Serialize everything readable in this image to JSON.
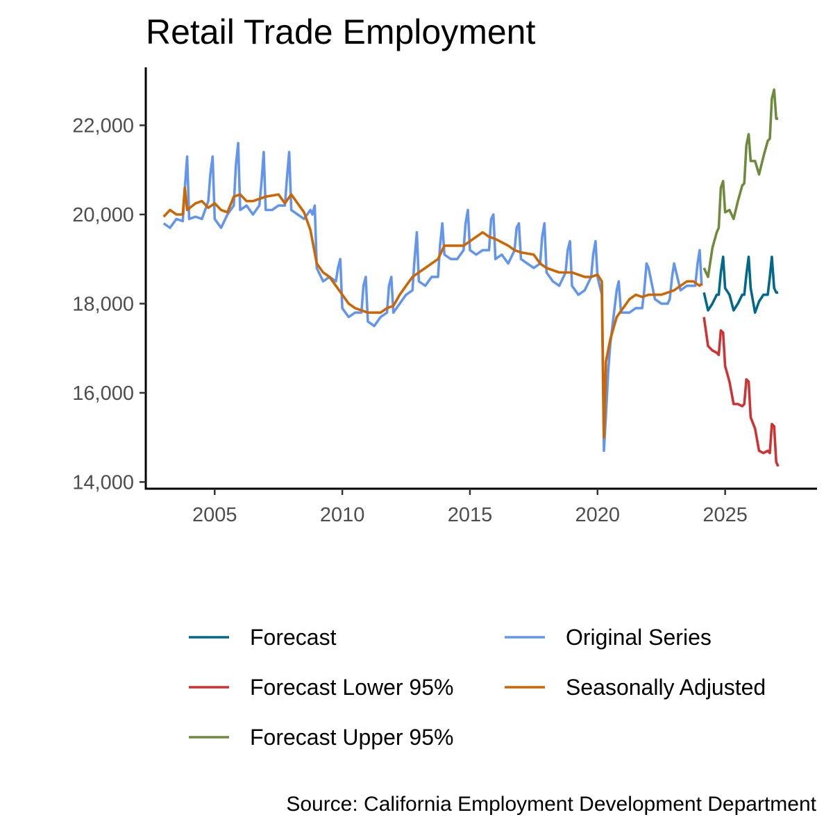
{
  "chart_data": {
    "type": "line",
    "title": "Retail Trade Employment",
    "xlabel": "",
    "ylabel": "",
    "caption": "Source: California Employment Development Department",
    "xlim": [
      2002.3,
      2028.6
    ],
    "ylim": [
      13850,
      23300
    ],
    "x_ticks": [
      2005,
      2010,
      2015,
      2020,
      2025
    ],
    "y_ticks": [
      14000,
      16000,
      18000,
      20000,
      22000
    ],
    "grid": false,
    "legend_position": "bottom",
    "legend_order": [
      "Forecast",
      "Forecast Lower 95%",
      "Forecast Upper 95%",
      "Original Series",
      "Seasonally Adjusted"
    ],
    "series": [
      {
        "name": "Original Series",
        "color": "#6495ed",
        "x": [
          2003.0,
          2003.25,
          2003.5,
          2003.75,
          2003.83,
          2003.92,
          2004.0,
          2004.25,
          2004.5,
          2004.75,
          2004.83,
          2004.92,
          2005.0,
          2005.25,
          2005.5,
          2005.75,
          2005.83,
          2005.92,
          2006.0,
          2006.25,
          2006.5,
          2006.75,
          2006.83,
          2006.92,
          2007.0,
          2007.25,
          2007.5,
          2007.75,
          2007.83,
          2007.92,
          2008.0,
          2008.25,
          2008.5,
          2008.75,
          2008.83,
          2008.92,
          2009.0,
          2009.25,
          2009.5,
          2009.75,
          2009.83,
          2009.92,
          2010.0,
          2010.25,
          2010.5,
          2010.75,
          2010.83,
          2010.92,
          2011.0,
          2011.25,
          2011.5,
          2011.75,
          2011.83,
          2011.92,
          2012.0,
          2012.25,
          2012.5,
          2012.75,
          2012.83,
          2012.92,
          2013.0,
          2013.25,
          2013.5,
          2013.75,
          2013.83,
          2013.92,
          2014.0,
          2014.25,
          2014.5,
          2014.75,
          2014.83,
          2014.92,
          2015.0,
          2015.25,
          2015.5,
          2015.75,
          2015.83,
          2015.92,
          2016.0,
          2016.25,
          2016.5,
          2016.75,
          2016.83,
          2016.92,
          2017.0,
          2017.25,
          2017.5,
          2017.75,
          2017.83,
          2017.92,
          2018.0,
          2018.25,
          2018.5,
          2018.75,
          2018.83,
          2018.92,
          2019.0,
          2019.25,
          2019.5,
          2019.75,
          2019.83,
          2019.92,
          2020.0,
          2020.17,
          2020.25,
          2020.33,
          2020.42,
          2020.5,
          2020.75,
          2020.83,
          2020.92,
          2021.0,
          2021.25,
          2021.5,
          2021.75,
          2021.83,
          2021.92,
          2022.0,
          2022.25,
          2022.5,
          2022.75,
          2022.83,
          2022.92,
          2023.0,
          2023.25,
          2023.5,
          2023.75,
          2023.83,
          2023.92,
          2024.0,
          2024.08
        ],
        "y": [
          19800,
          19700,
          19900,
          19850,
          20600,
          21300,
          19900,
          19950,
          19900,
          20300,
          20900,
          21300,
          19900,
          19700,
          20000,
          20200,
          21100,
          21600,
          20100,
          20200,
          20000,
          20200,
          20700,
          21400,
          20100,
          20100,
          20200,
          20200,
          20800,
          21400,
          20100,
          20000,
          19900,
          20100,
          20000,
          20200,
          18800,
          18500,
          18600,
          18500,
          18800,
          19000,
          17900,
          17700,
          17800,
          17800,
          18400,
          18600,
          17600,
          17500,
          17700,
          17800,
          18400,
          18600,
          17800,
          18000,
          18200,
          18300,
          19000,
          19600,
          18500,
          18400,
          18600,
          18600,
          19300,
          19800,
          19100,
          19000,
          19000,
          19200,
          19800,
          20100,
          19200,
          19100,
          19200,
          19200,
          19900,
          20000,
          19000,
          19100,
          18900,
          19200,
          19700,
          19800,
          19000,
          18900,
          18800,
          18900,
          19500,
          19800,
          18700,
          18500,
          18400,
          18700,
          19200,
          19400,
          18400,
          18200,
          18300,
          18600,
          19100,
          19400,
          18600,
          18200,
          14700,
          15500,
          16500,
          17100,
          18300,
          18500,
          17800,
          17800,
          17800,
          17900,
          17900,
          18300,
          18900,
          18800,
          18100,
          18000,
          18000,
          18100,
          18600,
          18900,
          18300,
          18400,
          18400,
          18400,
          18900,
          19200,
          18400
        ]
      },
      {
        "name": "Seasonally Adjusted",
        "color": "#cc6600",
        "x": [
          2003.0,
          2003.25,
          2003.5,
          2003.75,
          2003.83,
          2003.92,
          2004.25,
          2004.5,
          2004.75,
          2005.0,
          2005.25,
          2005.5,
          2005.75,
          2006.0,
          2006.25,
          2006.5,
          2006.75,
          2007.0,
          2007.5,
          2007.75,
          2008.0,
          2008.25,
          2008.5,
          2008.75,
          2009.0,
          2009.25,
          2009.5,
          2009.75,
          2010.0,
          2010.25,
          2010.5,
          2010.75,
          2011.0,
          2011.5,
          2011.75,
          2012.0,
          2012.25,
          2012.5,
          2012.75,
          2013.0,
          2013.5,
          2013.75,
          2014.0,
          2014.5,
          2014.75,
          2015.0,
          2015.25,
          2015.5,
          2015.75,
          2016.0,
          2016.5,
          2016.75,
          2017.0,
          2017.5,
          2017.75,
          2018.0,
          2018.5,
          2018.75,
          2019.0,
          2019.5,
          2019.75,
          2020.0,
          2020.17,
          2020.25,
          2020.33,
          2020.5,
          2020.75,
          2021.0,
          2021.25,
          2021.5,
          2021.75,
          2022.0,
          2022.5,
          2022.75,
          2023.0,
          2023.5,
          2023.75,
          2024.0,
          2024.08
        ],
        "y": [
          19950,
          20100,
          20000,
          20000,
          20600,
          20100,
          20250,
          20300,
          20150,
          20250,
          20100,
          20050,
          20400,
          20450,
          20300,
          20300,
          20350,
          20400,
          20450,
          20250,
          20450,
          20250,
          20050,
          19650,
          18900,
          18700,
          18600,
          18400,
          18200,
          18000,
          17900,
          17850,
          17800,
          17800,
          17900,
          17950,
          18200,
          18400,
          18600,
          18700,
          18900,
          19000,
          19300,
          19300,
          19300,
          19400,
          19500,
          19600,
          19500,
          19450,
          19300,
          19200,
          19150,
          19100,
          18900,
          18800,
          18700,
          18700,
          18700,
          18600,
          18600,
          18650,
          18500,
          15000,
          16700,
          17200,
          17700,
          17900,
          18100,
          18200,
          18150,
          18200,
          18200,
          18250,
          18300,
          18500,
          18500,
          18400,
          18450
        ]
      },
      {
        "name": "Forecast",
        "color": "#00688b",
        "x": [
          2024.17,
          2024.33,
          2024.5,
          2024.67,
          2024.75,
          2024.83,
          2024.92,
          2025.0,
          2025.17,
          2025.33,
          2025.5,
          2025.67,
          2025.75,
          2025.83,
          2025.92,
          2026.0,
          2026.17,
          2026.33,
          2026.5,
          2026.67,
          2026.75,
          2026.83,
          2026.92,
          2027.0,
          2027.08
        ],
        "y": [
          18250,
          17850,
          18000,
          18200,
          18200,
          18700,
          19050,
          18350,
          18200,
          17850,
          18000,
          18200,
          18200,
          18650,
          19050,
          18350,
          17800,
          18050,
          18200,
          18200,
          18600,
          19050,
          18350,
          18250,
          18250
        ]
      },
      {
        "name": "Forecast Lower 95%",
        "color": "#cd3333",
        "x": [
          2024.17,
          2024.33,
          2024.5,
          2024.67,
          2024.75,
          2024.83,
          2024.92,
          2025.0,
          2025.17,
          2025.33,
          2025.5,
          2025.67,
          2025.75,
          2025.83,
          2025.92,
          2026.0,
          2026.17,
          2026.33,
          2026.5,
          2026.67,
          2026.75,
          2026.83,
          2026.92,
          2027.0,
          2027.08
        ],
        "y": [
          17700,
          17050,
          16950,
          16900,
          16850,
          17400,
          17350,
          16600,
          16250,
          15750,
          15750,
          15700,
          15750,
          16300,
          16250,
          15450,
          15200,
          14700,
          14650,
          14700,
          14650,
          15300,
          15250,
          14450,
          14350
        ]
      },
      {
        "name": "Forecast Upper 95%",
        "color": "#6e8b3d",
        "x": [
          2024.17,
          2024.33,
          2024.5,
          2024.67,
          2024.75,
          2024.83,
          2024.92,
          2025.0,
          2025.17,
          2025.33,
          2025.5,
          2025.67,
          2025.75,
          2025.83,
          2025.92,
          2026.0,
          2026.17,
          2026.33,
          2026.5,
          2026.67,
          2026.75,
          2026.83,
          2026.92,
          2027.0,
          2027.08
        ],
        "y": [
          18800,
          18600,
          19250,
          19600,
          19700,
          20600,
          20750,
          20050,
          20100,
          19900,
          20300,
          20650,
          20700,
          21550,
          21800,
          21200,
          21200,
          20900,
          21300,
          21650,
          21700,
          22600,
          22800,
          22150,
          22150
        ]
      }
    ]
  }
}
